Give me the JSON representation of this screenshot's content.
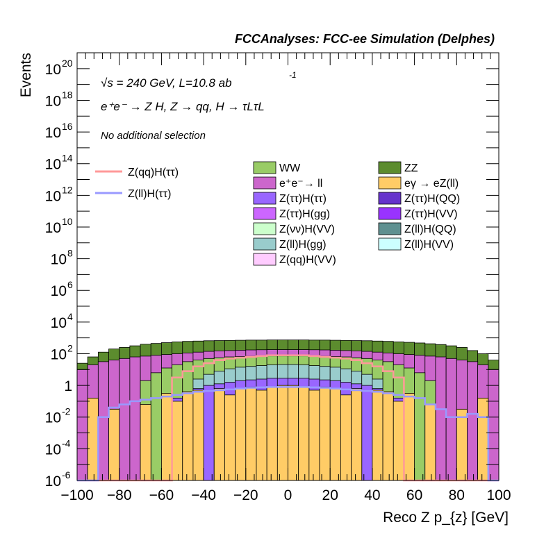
{
  "chart_data": {
    "type": "bar",
    "stacked": true,
    "title": "FCCAnalyses: FCC-ee Simulation (Delphes)",
    "xlabel": "Reco Z p_{z} [GeV]",
    "ylabel": "Events",
    "xlim": [
      -100,
      100
    ],
    "ylim": [
      1e-06,
      1e+21
    ],
    "log_y": true,
    "x_tick_labels": [
      "−100",
      "−80",
      "−60",
      "−40",
      "−20",
      "0",
      "20",
      "40",
      "60",
      "80",
      "100"
    ],
    "y_tick_exponents": [
      20,
      18,
      16,
      14,
      12,
      10,
      8,
      6,
      4,
      2,
      0,
      -2,
      -4,
      -6
    ],
    "annotations": {
      "energy": "√s = 240 GeV, L=10.8 ab",
      "energy_sup": "-1",
      "process": "e⁺e⁻ → Z H, Z → qq, H → τLτL",
      "selection": "No additional selection"
    },
    "line_legend": [
      {
        "name": "Z(qq)H(ττ)",
        "color": "#ff9999"
      },
      {
        "name": "Z(ll)H(ττ)",
        "color": "#9999ff"
      }
    ],
    "fill_legend": [
      {
        "name": "WW",
        "color": "#99cc66"
      },
      {
        "name": "ZZ",
        "color": "#5c8c2e"
      },
      {
        "name": "e⁺e⁻→ ll",
        "color": "#cc66cc"
      },
      {
        "name": "eγ → eZ(ll)",
        "color": "#ffcc66"
      },
      {
        "name": "Z(ττ)H(ττ)",
        "color": "#9966ff"
      },
      {
        "name": "Z(ττ)H(QQ)",
        "color": "#6633cc"
      },
      {
        "name": "Z(ττ)H(gg)",
        "color": "#cc66ff"
      },
      {
        "name": "Z(ττ)H(VV)",
        "color": "#9933ff"
      },
      {
        "name": "Z(νν)H(VV)",
        "color": "#ccffcc"
      },
      {
        "name": "Z(ll)H(QQ)",
        "color": "#5f9090"
      },
      {
        "name": "Z(ll)H(gg)",
        "color": "#99cccc"
      },
      {
        "name": "Z(ll)H(VV)",
        "color": "#ccffff"
      },
      {
        "name": "Z(qq)H(VV)",
        "color": "#ffccff"
      }
    ],
    "bin_edges_start": -100,
    "bin_width": 5,
    "stack_layers": [
      {
        "name": "ZZ",
        "color": "#5c8c2e",
        "tops_log10": [
          1.4,
          1.8,
          2.1,
          2.3,
          2.4,
          2.5,
          2.6,
          2.65,
          2.7,
          2.75,
          2.78,
          2.8,
          2.82,
          2.83,
          2.84,
          2.85,
          2.86,
          2.86,
          2.87,
          2.87,
          2.87,
          2.87,
          2.86,
          2.86,
          2.85,
          2.84,
          2.83,
          2.82,
          2.8,
          2.78,
          2.75,
          2.72,
          2.68,
          2.63,
          2.58,
          2.5,
          2.4,
          2.2,
          2.0,
          1.6
        ]
      },
      {
        "name": "e⁺e⁻→ ll",
        "color": "#cc66cc",
        "tops_log10": [
          1.0,
          1.3,
          1.5,
          1.6,
          1.7,
          1.8,
          1.85,
          1.9,
          1.95,
          2.0,
          2.05,
          2.1,
          2.15,
          2.18,
          2.2,
          2.22,
          2.24,
          2.25,
          2.26,
          2.26,
          2.26,
          2.26,
          2.25,
          2.24,
          2.22,
          2.2,
          2.18,
          2.15,
          2.1,
          2.05,
          2.0,
          1.95,
          1.9,
          1.85,
          1.8,
          1.7,
          1.6,
          1.5,
          1.3,
          1.0
        ]
      },
      {
        "name": "WW",
        "color": "#99cc66",
        "tops_log10": [
          -7,
          -7,
          -7,
          -7,
          -7,
          -7,
          0.3,
          0.8,
          1.1,
          1.3,
          1.5,
          1.6,
          1.7,
          1.75,
          1.8,
          1.82,
          1.84,
          1.85,
          1.86,
          1.86,
          1.86,
          1.86,
          1.85,
          1.84,
          1.82,
          1.8,
          1.75,
          1.7,
          1.6,
          1.5,
          1.3,
          1.1,
          0.8,
          0.3,
          -7,
          -7,
          -7,
          -7,
          -7,
          -7
        ]
      },
      {
        "name": "Z(ll)H(gg)",
        "color": "#99cccc",
        "tops_log10": [
          -7,
          -7,
          -7,
          -7,
          -7,
          -7,
          -7,
          -7,
          -7,
          -7,
          -7,
          0.4,
          0.7,
          0.9,
          1.05,
          1.15,
          1.2,
          1.25,
          1.3,
          1.32,
          1.32,
          1.3,
          1.25,
          1.2,
          1.15,
          1.05,
          0.9,
          0.7,
          0.4,
          -7,
          -7,
          -7,
          -7,
          -7,
          -7,
          -7,
          -7,
          -7,
          -7,
          -7
        ]
      },
      {
        "name": "Z(ττ)H(ττ)",
        "color": "#9966ff",
        "tops_log10": [
          -7,
          -7,
          -7,
          -7,
          -7,
          -7,
          -7,
          -7,
          -1.5,
          -0.8,
          -0.4,
          -0.2,
          0.0,
          0.1,
          0.2,
          0.3,
          0.35,
          0.4,
          0.45,
          0.45,
          0.45,
          0.45,
          0.4,
          0.35,
          0.3,
          0.2,
          0.1,
          0.0,
          -0.2,
          -0.4,
          -0.8,
          -1.5,
          -7,
          -7,
          -7,
          -7,
          -7,
          -7,
          -7,
          -7
        ]
      },
      {
        "name": "eγ → eZ(ll)",
        "color": "#ffcc66",
        "tops_log10": [
          -7,
          -0.8,
          -7,
          -1.5,
          -7,
          -7,
          -1.2,
          -7,
          -0.5,
          -1.0,
          -0.4,
          -0.3,
          -7,
          -0.2,
          -0.6,
          -0.2,
          -0.1,
          -0.3,
          -0.1,
          0.0,
          0.0,
          -0.1,
          -0.3,
          -0.1,
          -0.2,
          -0.6,
          -0.2,
          -7,
          -0.3,
          -0.4,
          -1.0,
          -0.5,
          -7,
          -1.2,
          -7,
          -7,
          -1.5,
          -7,
          -0.8,
          -7
        ]
      }
    ],
    "line_series": [
      {
        "name": "Z(qq)H(ττ)",
        "color": "#ff9999",
        "values_log10": [
          -7,
          -7,
          -7,
          -7,
          -7,
          -7,
          -7,
          -7,
          -7,
          0.5,
          0.9,
          1.2,
          1.4,
          1.6,
          1.7,
          1.75,
          1.8,
          1.85,
          1.9,
          1.9,
          1.9,
          1.9,
          1.85,
          1.8,
          1.75,
          1.7,
          1.6,
          1.4,
          1.2,
          0.9,
          0.5,
          -7,
          -7,
          -7,
          -7,
          -7,
          -7,
          -7,
          -7,
          -7
        ]
      },
      {
        "name": "Z(ll)H(ττ)",
        "color": "#9999ff",
        "values_log10": [
          -7,
          -7,
          -2.0,
          -1.4,
          -1.2,
          -1.0,
          -0.9,
          -0.8,
          -0.7,
          -0.6,
          -0.5,
          -0.4,
          -0.35,
          -0.3,
          -0.25,
          -0.2,
          -0.15,
          -0.12,
          -0.1,
          -0.1,
          -0.1,
          -0.1,
          -0.12,
          -0.15,
          -0.2,
          -0.25,
          -0.3,
          -0.35,
          -0.4,
          -0.5,
          -0.6,
          -0.7,
          -0.8,
          -1.2,
          -1.5,
          -2.0,
          -2.0,
          -1.8,
          -2.0,
          -7
        ]
      }
    ]
  }
}
